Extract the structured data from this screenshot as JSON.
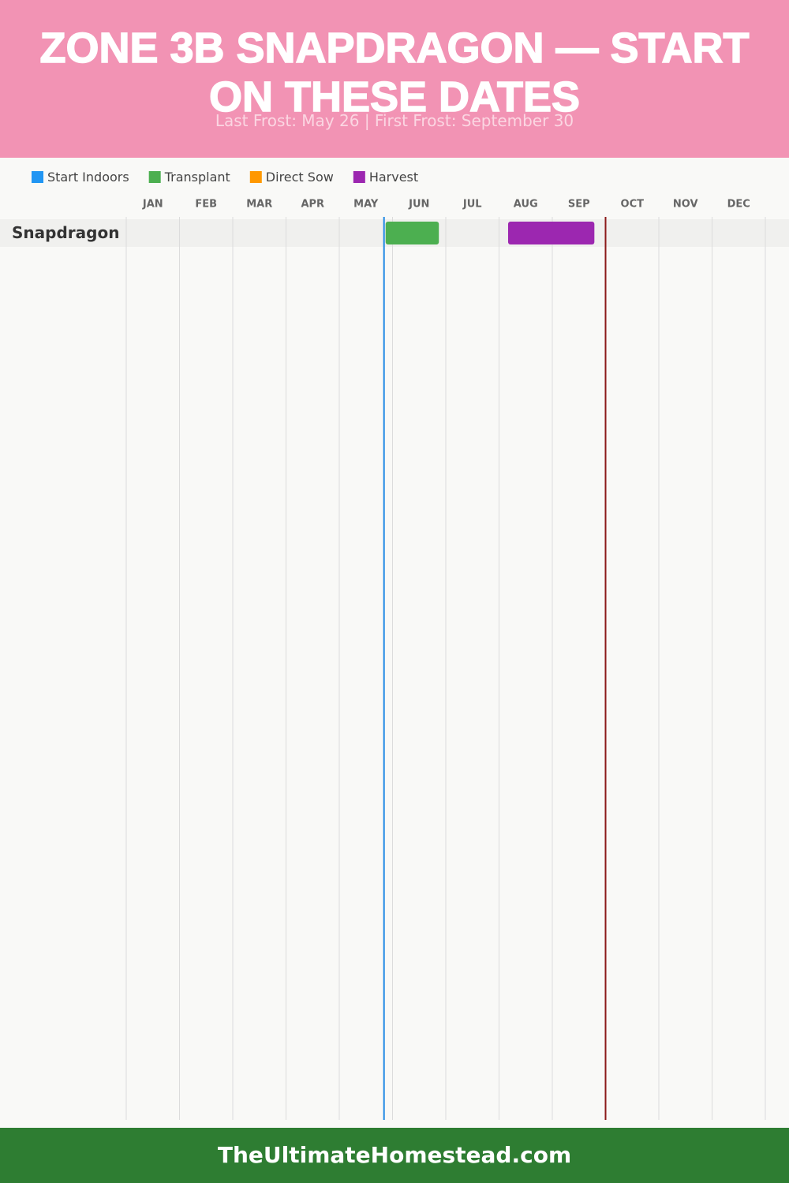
{
  "header": {
    "title": "ZONE 3B SNAPDRAGON — START ON THESE DATES",
    "subtitle": "Last Frost: May 26 | First Frost: September 30"
  },
  "chart_data": {
    "type": "gantt",
    "months": [
      "JAN",
      "FEB",
      "MAR",
      "APR",
      "MAY",
      "JUN",
      "JUL",
      "AUG",
      "SEP",
      "OCT",
      "NOV",
      "DEC"
    ],
    "xlim": [
      0,
      12
    ],
    "xticks": [
      0,
      1,
      2,
      3,
      4,
      5,
      6,
      7,
      8,
      9,
      10,
      11,
      12
    ],
    "grid": true,
    "rows": [
      "Snapdragon"
    ],
    "series": [
      {
        "name": "Start Indoors",
        "color": "#2196f3",
        "start": [
          null
        ],
        "end": [
          null
        ]
      },
      {
        "name": "Transplant",
        "color": "#4caf50",
        "start": [
          4.87
        ],
        "end": [
          5.87
        ]
      },
      {
        "name": "Direct Sow",
        "color": "#ff9800",
        "start": [
          null
        ],
        "end": [
          null
        ]
      },
      {
        "name": "Harvest",
        "color": "#9c27b0",
        "start": [
          7.17
        ],
        "end": [
          8.79
        ]
      }
    ],
    "frost_lines": [
      {
        "value": 4.84,
        "color": "#1e88e5"
      },
      {
        "value": 9.0,
        "color": "#8b1a1a"
      }
    ]
  },
  "footer": "TheUltimateHomestead.com"
}
